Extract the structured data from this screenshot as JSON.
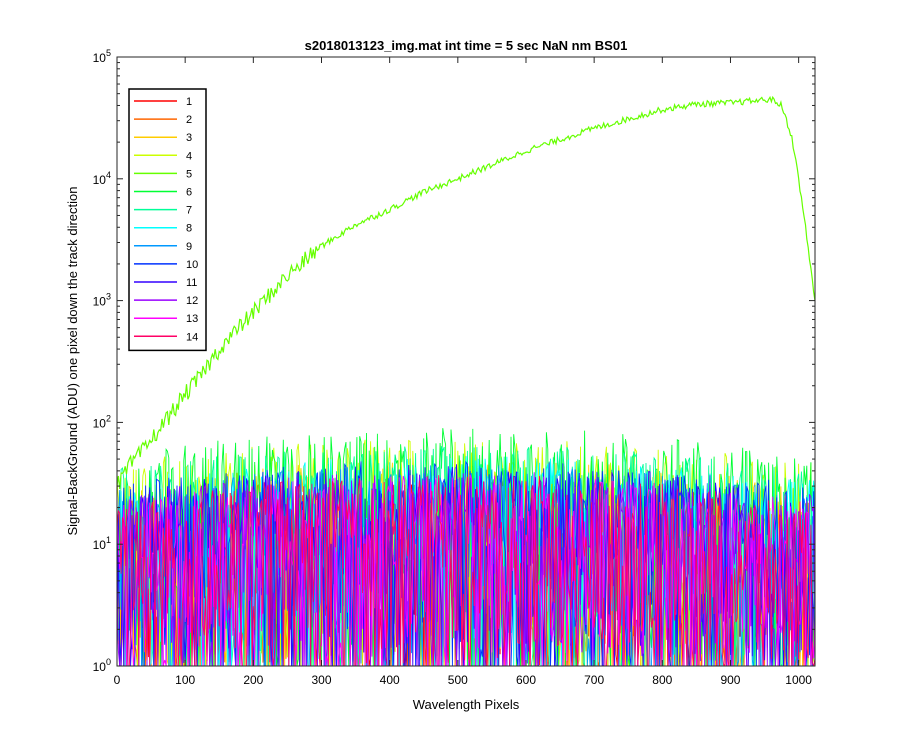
{
  "chart_data": {
    "type": "line",
    "title": "s2018013123_img.mat int time = 5 sec  NaN nm BS01",
    "xlabel": "Wavelength Pixels",
    "ylabel": "Signal-BackGround (ADU) one pixel down the track direction",
    "xlim": [
      0,
      1024
    ],
    "ylim": [
      1,
      100000
    ],
    "yscale": "log",
    "xticks": [
      "0",
      "100",
      "200",
      "300",
      "400",
      "500",
      "600",
      "700",
      "800",
      "900",
      "1000"
    ],
    "xtick_values": [
      0,
      100,
      200,
      300,
      400,
      500,
      600,
      700,
      800,
      900,
      1000
    ],
    "yticks": [
      {
        "value": 1,
        "base": "10",
        "exp": "0"
      },
      {
        "value": 10,
        "base": "10",
        "exp": "1"
      },
      {
        "value": 100,
        "base": "10",
        "exp": "2"
      },
      {
        "value": 1000,
        "base": "10",
        "exp": "3"
      },
      {
        "value": 10000,
        "base": "10",
        "exp": "4"
      },
      {
        "value": 100000,
        "base": "10",
        "exp": "5"
      }
    ],
    "legend_position": "top-left",
    "grid": false,
    "series": [
      {
        "name": "1",
        "color": "#ff0000",
        "level": 8
      },
      {
        "name": "2",
        "color": "#ff6600",
        "level": 9
      },
      {
        "name": "3",
        "color": "#ffcc00",
        "level": 12
      },
      {
        "name": "4",
        "color": "#ccff00",
        "level": 18
      },
      {
        "name": "5",
        "color": "#66ff00",
        "points": [
          [
            0,
            30
          ],
          [
            20,
            45
          ],
          [
            40,
            60
          ],
          [
            60,
            85
          ],
          [
            80,
            120
          ],
          [
            100,
            170
          ],
          [
            120,
            230
          ],
          [
            150,
            400
          ],
          [
            200,
            800
          ],
          [
            250,
            1600
          ],
          [
            300,
            2800
          ],
          [
            350,
            4200
          ],
          [
            400,
            5600
          ],
          [
            450,
            7800
          ],
          [
            500,
            10000
          ],
          [
            550,
            13000
          ],
          [
            600,
            17000
          ],
          [
            650,
            21000
          ],
          [
            700,
            26000
          ],
          [
            750,
            31000
          ],
          [
            800,
            37000
          ],
          [
            850,
            41000
          ],
          [
            900,
            42000
          ],
          [
            940,
            44000
          ],
          [
            960,
            45000
          ],
          [
            975,
            40000
          ],
          [
            990,
            22000
          ],
          [
            1000,
            10000
          ],
          [
            1010,
            4000
          ],
          [
            1024,
            1000
          ]
        ]
      },
      {
        "name": "6",
        "color": "#00ff33",
        "level": 22
      },
      {
        "name": "7",
        "color": "#00ff99",
        "level": 16
      },
      {
        "name": "8",
        "color": "#00ffff",
        "level": 13
      },
      {
        "name": "9",
        "color": "#0099ff",
        "level": 11
      },
      {
        "name": "10",
        "color": "#0033ff",
        "level": 12
      },
      {
        "name": "11",
        "color": "#3300ff",
        "level": 11
      },
      {
        "name": "12",
        "color": "#9900ff",
        "level": 10
      },
      {
        "name": "13",
        "color": "#ff00ff",
        "level": 9
      },
      {
        "name": "14",
        "color": "#ff0066",
        "level": 9
      }
    ]
  }
}
